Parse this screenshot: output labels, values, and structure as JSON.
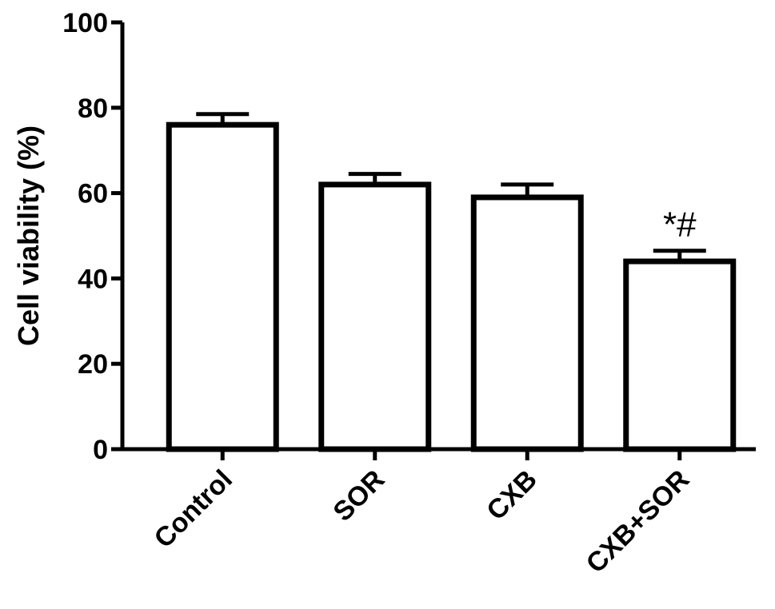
{
  "chart_data": {
    "type": "bar",
    "categories": [
      "Control",
      "SOR",
      "CXB",
      "CXB+SOR"
    ],
    "values": [
      76,
      62,
      59,
      44
    ],
    "errors": [
      2.5,
      2.5,
      3,
      2.5
    ],
    "annotations": [
      "",
      "",
      "",
      "*#"
    ],
    "title": "",
    "xlabel": "",
    "ylabel": "Cell viability (%)",
    "ylim": [
      0,
      100
    ],
    "yticks": [
      0,
      20,
      40,
      60,
      80,
      100
    ],
    "grid": false,
    "legend": "none",
    "bar_fill": "#ffffff",
    "bar_stroke": "#000000"
  }
}
